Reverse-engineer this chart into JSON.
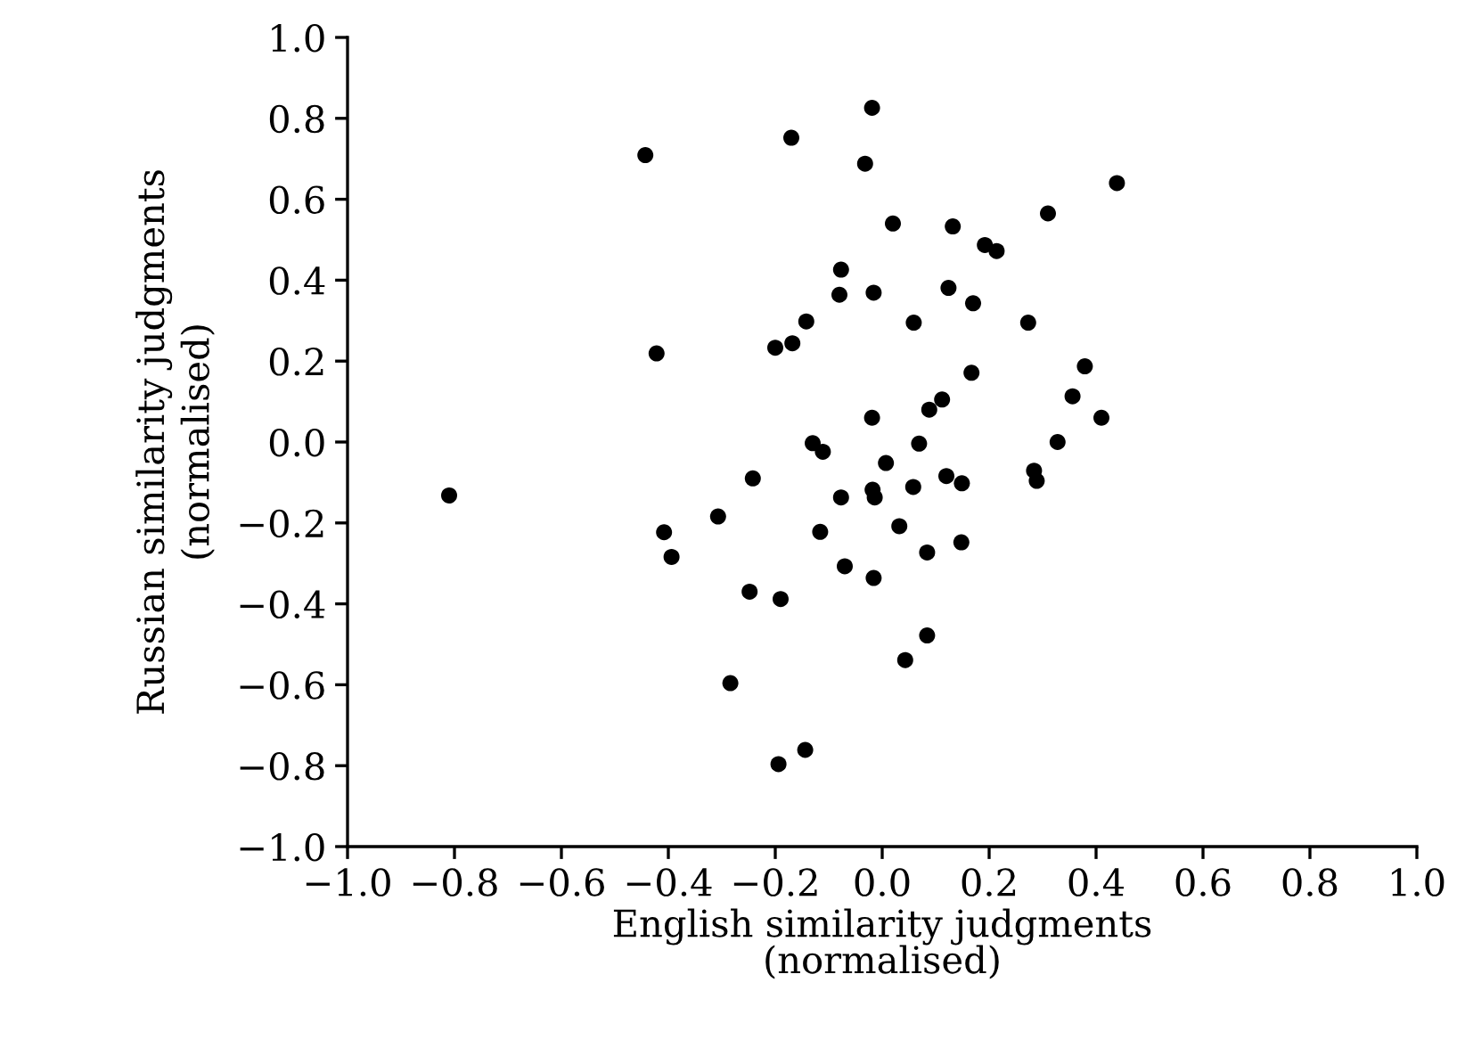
{
  "chart_data": {
    "type": "scatter",
    "xlabel": "English similarity judgments\n(normalised)",
    "ylabel": "Russian similarity judgments\n(normalised)",
    "series": [
      {
        "color": "#000000",
        "x": [
          -0.019,
          -0.17,
          -0.032,
          0.439,
          0.31,
          0.02,
          0.132,
          0.192,
          0.214,
          -0.077,
          -0.08,
          -0.016,
          0.124,
          0.17,
          -0.142,
          0.059,
          0.273,
          -0.2,
          -0.168,
          0.379,
          0.167,
          0.356,
          0.41,
          0.112,
          0.088,
          -0.019,
          0.328,
          0.069,
          -0.13,
          -0.111,
          0.007,
          -0.242,
          0.12,
          0.149,
          0.284,
          0.289,
          0.058,
          -0.018,
          -0.014,
          -0.077,
          -0.307,
          -0.116,
          0.032,
          0.148,
          0.084,
          -0.07,
          -0.016,
          -0.248,
          -0.19,
          0.084,
          0.043,
          -0.284,
          -0.144,
          -0.194,
          -0.443,
          -0.422,
          -0.81,
          -0.408,
          -0.394
        ],
        "values": [
          0.826,
          0.752,
          0.688,
          0.64,
          0.565,
          0.54,
          0.533,
          0.487,
          0.472,
          0.426,
          0.364,
          0.369,
          0.381,
          0.343,
          0.298,
          0.295,
          0.295,
          0.233,
          0.244,
          0.187,
          0.171,
          0.113,
          0.06,
          0.105,
          0.08,
          0.06,
          0.0,
          -0.004,
          -0.003,
          -0.024,
          -0.052,
          -0.09,
          -0.084,
          -0.102,
          -0.071,
          -0.096,
          -0.111,
          -0.118,
          -0.137,
          -0.137,
          -0.184,
          -0.222,
          -0.208,
          -0.248,
          -0.273,
          -0.307,
          -0.336,
          -0.37,
          -0.388,
          -0.478,
          -0.539,
          -0.596,
          -0.761,
          -0.796,
          0.709,
          0.219,
          -0.132,
          -0.223,
          -0.284
        ]
      }
    ],
    "marker": "circle",
    "xlim": [
      -1.0,
      1.0
    ],
    "ylim": [
      -1.0,
      1.0
    ],
    "xticks": [
      {
        "value": -1.0,
        "label": "−1.0"
      },
      {
        "value": -0.8,
        "label": "−0.8"
      },
      {
        "value": -0.6,
        "label": "−0.6"
      },
      {
        "value": -0.4,
        "label": "−0.4"
      },
      {
        "value": -0.2,
        "label": "−0.2"
      },
      {
        "value": 0,
        "label": "0.0"
      },
      {
        "value": 0.2,
        "label": "0.2"
      },
      {
        "value": 0.4,
        "label": "0.4"
      },
      {
        "value": 0.6,
        "label": "0.6"
      },
      {
        "value": 0.8,
        "label": "0.8"
      },
      {
        "value": 1,
        "label": "1.0"
      }
    ],
    "yticks": [
      {
        "value": -1.0,
        "label": "−1.0"
      },
      {
        "value": -0.8,
        "label": "−0.8"
      },
      {
        "value": -0.6,
        "label": "−0.6"
      },
      {
        "value": -0.4,
        "label": "−0.4"
      },
      {
        "value": -0.2,
        "label": "−0.2"
      },
      {
        "value": 0,
        "label": "0.0"
      },
      {
        "value": 0.2,
        "label": "0.2"
      },
      {
        "value": 0.4,
        "label": "0.4"
      },
      {
        "value": 0.6,
        "label": "0.6"
      },
      {
        "value": 0.8,
        "label": "0.8"
      },
      {
        "value": 1,
        "label": "1.0"
      }
    ]
  }
}
